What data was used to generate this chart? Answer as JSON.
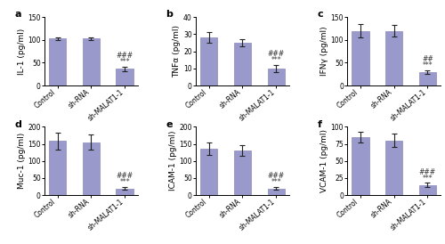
{
  "subplots": [
    {
      "label": "a",
      "ylabel": "IL-1 (pg/ml)",
      "ylim": [
        0,
        150
      ],
      "yticks": [
        0,
        50,
        100,
        150
      ],
      "bars": [
        103,
        103,
        37
      ],
      "errors": [
        3,
        3,
        5
      ],
      "sig_hash": "###",
      "sig_star": "***",
      "sig_col": 2
    },
    {
      "label": "b",
      "ylabel": "TNFα (pg/ml)",
      "ylim": [
        0,
        40
      ],
      "yticks": [
        0,
        10,
        20,
        30,
        40
      ],
      "bars": [
        28,
        25,
        10
      ],
      "errors": [
        3,
        2,
        2
      ],
      "sig_hash": "###",
      "sig_star": "***",
      "sig_col": 2
    },
    {
      "label": "c",
      "ylabel": "IFNγ (pg/ml)",
      "ylim": [
        0,
        150
      ],
      "yticks": [
        0,
        50,
        100,
        150
      ],
      "bars": [
        120,
        120,
        30
      ],
      "errors": [
        14,
        12,
        4
      ],
      "sig_hash": "##",
      "sig_star": "***",
      "sig_col": 2
    },
    {
      "label": "d",
      "ylabel": "Muc-1 (pg/ml)",
      "ylim": [
        0,
        200
      ],
      "yticks": [
        0,
        50,
        100,
        150,
        200
      ],
      "bars": [
        158,
        155,
        20
      ],
      "errors": [
        25,
        22,
        5
      ],
      "sig_hash": "###",
      "sig_star": "***",
      "sig_col": 2
    },
    {
      "label": "e",
      "ylabel": "ICAM-1 (pg/ml)",
      "ylim": [
        0,
        200
      ],
      "yticks": [
        0,
        50,
        100,
        150,
        200
      ],
      "bars": [
        135,
        130,
        20
      ],
      "errors": [
        18,
        15,
        4
      ],
      "sig_hash": "###",
      "sig_star": "***",
      "sig_col": 2
    },
    {
      "label": "f",
      "ylabel": "VCAM-1 (pg/ml)",
      "ylim": [
        0,
        100
      ],
      "yticks": [
        0,
        25,
        50,
        75,
        100
      ],
      "bars": [
        85,
        80,
        15
      ],
      "errors": [
        8,
        10,
        3
      ],
      "sig_hash": "###",
      "sig_star": "***",
      "sig_col": 2
    }
  ],
  "categories": [
    "Control",
    "sh-RNA",
    "sh-MALAT1-1"
  ],
  "bar_color": "#9999cc",
  "bar_edge_color": "#8888bb",
  "error_color": "#222222",
  "sig_color": "#333333",
  "label_fontsize": 6.5,
  "tick_fontsize": 5.5,
  "sig_fontsize": 5.5,
  "panel_label_fontsize": 8,
  "xlabel_rotation": 40
}
